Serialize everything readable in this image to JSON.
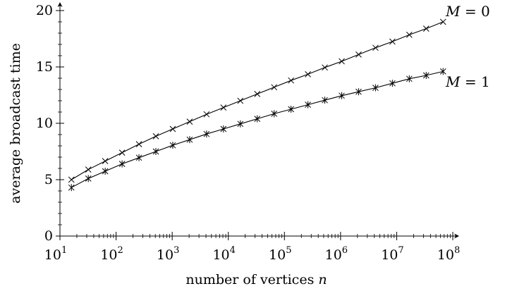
{
  "chart_data": {
    "type": "line",
    "title": "",
    "xlabel": "number of vertices n",
    "ylabel": "average broadcast time",
    "xscale": "log",
    "xlim": [
      10,
      100000000
    ],
    "ylim": [
      0,
      20
    ],
    "grid": false,
    "legend": "inline labels at right end of lines",
    "x_ticks": [
      {
        "value": 10,
        "mantissa": "10",
        "exp": "1"
      },
      {
        "value": 100,
        "mantissa": "10",
        "exp": "2"
      },
      {
        "value": 1000,
        "mantissa": "10",
        "exp": "3"
      },
      {
        "value": 10000,
        "mantissa": "10",
        "exp": "4"
      },
      {
        "value": 100000,
        "mantissa": "10",
        "exp": "5"
      },
      {
        "value": 1000000,
        "mantissa": "10",
        "exp": "6"
      },
      {
        "value": 10000000,
        "mantissa": "10",
        "exp": "7"
      },
      {
        "value": 100000000,
        "mantissa": "10",
        "exp": "8"
      }
    ],
    "y_ticks": [
      {
        "value": 0,
        "label": "0"
      },
      {
        "value": 5,
        "label": "5"
      },
      {
        "value": 10,
        "label": "10"
      },
      {
        "value": 15,
        "label": "15"
      },
      {
        "value": 20,
        "label": "20"
      }
    ],
    "x": [
      16,
      32,
      64,
      128,
      256,
      512,
      1024,
      2048,
      4096,
      8192,
      16384,
      32768,
      65536,
      131072,
      262144,
      524288,
      1048576,
      2097152,
      4194304,
      8388608,
      16777216,
      33554432,
      67108864
    ],
    "series": [
      {
        "name": "M = 0",
        "label_var": "M",
        "label_value": "0",
        "marker": "x",
        "color": "#000000",
        "values": [
          5.0,
          5.9,
          6.65,
          7.4,
          8.15,
          8.85,
          9.5,
          10.15,
          10.8,
          11.4,
          12.0,
          12.6,
          13.2,
          13.8,
          14.35,
          14.95,
          15.5,
          16.1,
          16.7,
          17.25,
          17.85,
          18.4,
          19.0
        ]
      },
      {
        "name": "M = 1",
        "label_var": "M",
        "label_value": "1",
        "marker": "asterisk",
        "color": "#000000",
        "values": [
          4.3,
          5.1,
          5.75,
          6.4,
          6.95,
          7.5,
          8.05,
          8.55,
          9.05,
          9.5,
          9.95,
          10.4,
          10.85,
          11.25,
          11.65,
          12.05,
          12.45,
          12.8,
          13.15,
          13.55,
          13.95,
          14.25,
          14.6
        ]
      }
    ]
  }
}
